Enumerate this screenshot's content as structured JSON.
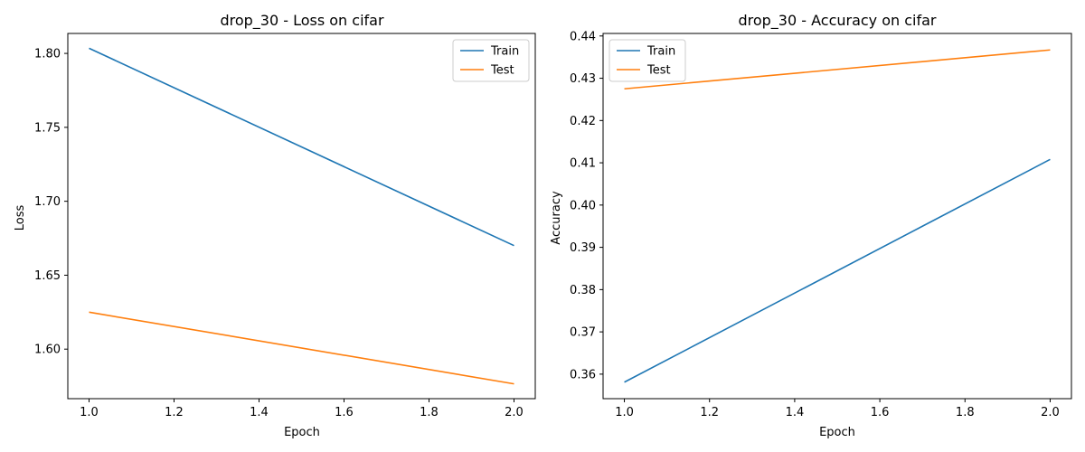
{
  "chart_data": [
    {
      "type": "line",
      "title": "drop_30 - Loss on cifar",
      "xlabel": "Epoch",
      "ylabel": "Loss",
      "x": [
        1.0,
        2.0
      ],
      "xlim": [
        0.95,
        2.05
      ],
      "ylim": [
        1.5665,
        1.8135
      ],
      "xticks": [
        1.0,
        1.2,
        1.4,
        1.6,
        1.8,
        2.0
      ],
      "xtick_labels": [
        "1.0",
        "1.2",
        "1.4",
        "1.6",
        "1.8",
        "2.0"
      ],
      "yticks": [
        1.6,
        1.65,
        1.7,
        1.75,
        1.8
      ],
      "ytick_labels": [
        "1.60",
        "1.65",
        "1.70",
        "1.75",
        "1.80"
      ],
      "grid": false,
      "legend_position": "upper right",
      "series": [
        {
          "name": "Train",
          "color": "#1f77b4",
          "values": [
            1.8035,
            1.67
          ]
        },
        {
          "name": "Test",
          "color": "#ff7f0e",
          "values": [
            1.625,
            1.5765
          ]
        }
      ]
    },
    {
      "type": "line",
      "title": "drop_30 - Accuracy on cifar",
      "xlabel": "Epoch",
      "ylabel": "Accuracy",
      "x": [
        1.0,
        2.0
      ],
      "xlim": [
        0.95,
        2.05
      ],
      "ylim": [
        0.3542,
        0.4406
      ],
      "xticks": [
        1.0,
        1.2,
        1.4,
        1.6,
        1.8,
        2.0
      ],
      "xtick_labels": [
        "1.0",
        "1.2",
        "1.4",
        "1.6",
        "1.8",
        "2.0"
      ],
      "yticks": [
        0.36,
        0.37,
        0.38,
        0.39,
        0.4,
        0.41,
        0.42,
        0.43,
        0.44
      ],
      "ytick_labels": [
        "0.36",
        "0.37",
        "0.38",
        "0.39",
        "0.40",
        "0.41",
        "0.42",
        "0.43",
        "0.44"
      ],
      "grid": false,
      "legend_position": "upper left",
      "series": [
        {
          "name": "Train",
          "color": "#1f77b4",
          "values": [
            0.3581,
            0.4108
          ]
        },
        {
          "name": "Test",
          "color": "#ff7f0e",
          "values": [
            0.4275,
            0.4367
          ]
        }
      ]
    }
  ]
}
